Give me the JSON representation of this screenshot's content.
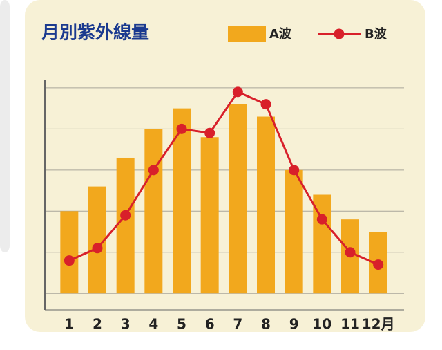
{
  "chart_data": {
    "type": "bar",
    "title": "月別紫外線量",
    "categories": [
      "1",
      "2",
      "3",
      "4",
      "5",
      "6",
      "7",
      "8",
      "9",
      "10",
      "11",
      "12月"
    ],
    "series": [
      {
        "name": "A波",
        "type": "bar",
        "color": "#f2a81d",
        "values": [
          2.0,
          2.6,
          3.3,
          4.0,
          4.5,
          3.8,
          4.6,
          4.3,
          3.0,
          2.4,
          1.8,
          1.5
        ]
      },
      {
        "name": "B波",
        "type": "line",
        "color": "#d8202a",
        "values": [
          0.8,
          1.1,
          1.9,
          3.0,
          4.0,
          3.9,
          4.9,
          4.6,
          3.0,
          1.8,
          1.0,
          0.7
        ]
      }
    ],
    "ylim": [
      -0.4,
      5.2
    ],
    "yticks": [
      0,
      1,
      2,
      3,
      4,
      5
    ],
    "grid": true
  }
}
